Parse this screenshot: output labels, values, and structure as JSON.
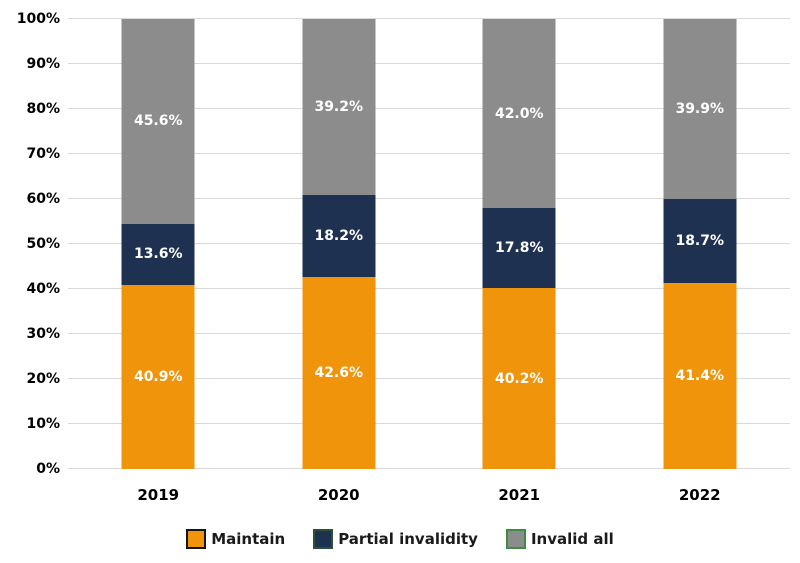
{
  "chart_data": {
    "type": "bar",
    "stacked": true,
    "percent_stacked": true,
    "title": "",
    "xlabel": "",
    "ylabel": "",
    "categories": [
      "2019",
      "2020",
      "2021",
      "2022"
    ],
    "series": [
      {
        "name": "Maintain",
        "color": "#F0940C",
        "swatch_border_color": "#141414",
        "values": [
          40.9,
          42.6,
          40.2,
          41.4
        ],
        "labels": [
          "40.9%",
          "42.6%",
          "40.2%",
          "41.4%"
        ]
      },
      {
        "name": "Partial invalidity",
        "color": "#1E3150",
        "swatch_border_color": "#2B5334",
        "values": [
          13.6,
          18.2,
          17.8,
          18.7
        ],
        "labels": [
          "13.6%",
          "18.2%",
          "17.8%",
          "18.7%"
        ]
      },
      {
        "name": "Invalid all",
        "color": "#8C8C8C",
        "swatch_border_color": "#3C8C43",
        "values": [
          45.6,
          39.2,
          42.0,
          39.9
        ],
        "labels": [
          "45.6%",
          "39.2%",
          "42.0%",
          "39.9%"
        ]
      }
    ],
    "ylim": [
      0,
      100
    ],
    "ytick_step": 10,
    "ytick_labels": [
      "0%",
      "10%",
      "20%",
      "30%",
      "40%",
      "50%",
      "60%",
      "70%",
      "80%",
      "90%",
      "100%"
    ],
    "grid": true,
    "gridline_color": "#D9D9D9",
    "value_label_color": "#FFFFFF",
    "axis_text_color": "#000000",
    "legend_position": "bottom"
  }
}
